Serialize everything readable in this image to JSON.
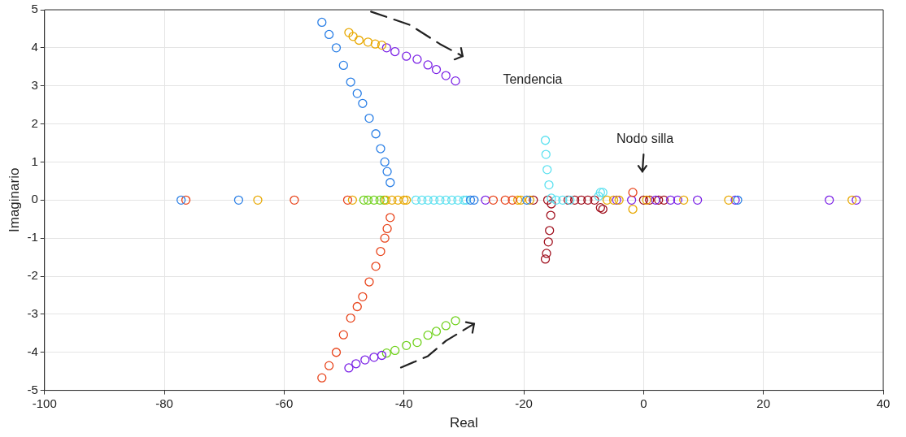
{
  "chart_data": {
    "type": "scatter",
    "xlabel": "Real",
    "ylabel": "Imaginario",
    "xlim": [
      -100,
      40
    ],
    "xticks": [
      -100,
      -80,
      -60,
      -40,
      -20,
      0,
      20,
      40
    ],
    "ylim": [
      -5,
      5
    ],
    "yticks": [
      -5,
      -4,
      -3,
      -2,
      -1,
      0,
      1,
      2,
      3,
      4,
      5
    ],
    "grid": true,
    "legend": false,
    "marker": "circle",
    "annotations": [
      "Tendencia",
      "Nodo silla"
    ],
    "series": [
      {
        "color": "#2a7fe6",
        "x": [
          -53.7,
          -52.5,
          -51.3,
          -50.1,
          -48.9,
          -47.8,
          -46.9,
          -45.8,
          -44.7,
          -43.9,
          -43.2,
          -42.8,
          -42.3,
          -77.2,
          -67.6,
          -28.9,
          -28.3,
          -19.5,
          15.7
        ],
        "values": [
          4.67,
          4.35,
          4.0,
          3.54,
          3.1,
          2.8,
          2.54,
          2.15,
          1.74,
          1.35,
          1.0,
          0.75,
          0.46,
          0,
          0,
          0,
          0,
          0,
          0
        ]
      },
      {
        "color": "#e8431a",
        "x": [
          -53.7,
          -52.5,
          -51.3,
          -50.1,
          -48.9,
          -47.8,
          -46.9,
          -45.8,
          -44.7,
          -43.9,
          -43.2,
          -42.8,
          -42.3,
          -76.4,
          -58.3,
          -49.4,
          -25.1,
          -23.1,
          -21.9,
          -1.8
        ],
        "values": [
          -4.67,
          -4.35,
          -4.0,
          -3.54,
          -3.1,
          -2.8,
          -2.54,
          -2.15,
          -1.74,
          -1.35,
          -1.0,
          -0.75,
          -0.46,
          0,
          0,
          0,
          0,
          0,
          0,
          0.2
        ]
      },
      {
        "color": "#e8a800",
        "x": [
          -49.2,
          -48.5,
          -47.5,
          -46.0,
          -44.8,
          -43.7,
          -64.4,
          -48.6,
          -43,
          -42,
          -41,
          -40,
          -39.6,
          -21,
          -20.5,
          -19,
          -6.1,
          -5,
          -4.1,
          -1.8,
          0.5,
          6.7,
          14.2,
          34.8
        ],
        "values": [
          4.4,
          4.3,
          4.2,
          4.15,
          4.1,
          4.07,
          0,
          0,
          0,
          0,
          0,
          0,
          0,
          0,
          0,
          0,
          0,
          0,
          0,
          -0.24,
          0,
          0,
          0,
          0
        ]
      },
      {
        "color": "#7b22e6",
        "x": [
          -42.9,
          -41.5,
          -39.6,
          -37.8,
          -36,
          -34.6,
          -33,
          -31.4,
          -49.2,
          -48,
          -46.5,
          -45,
          -43.7,
          -26.4,
          -4.5,
          -2,
          2,
          4.5,
          5.7,
          9.0,
          15.3,
          31.0,
          35.5
        ],
        "values": [
          4.0,
          3.9,
          3.78,
          3.7,
          3.55,
          3.43,
          3.27,
          3.13,
          -4.41,
          -4.3,
          -4.2,
          -4.13,
          -4.08,
          0,
          0,
          0,
          0,
          0,
          0,
          0,
          0,
          0,
          0
        ]
      },
      {
        "color": "#6fd11a",
        "x": [
          -42.9,
          -41.5,
          -39.6,
          -37.8,
          -36,
          -34.6,
          -33,
          -31.4,
          -46.7,
          -46,
          -45,
          -44,
          -43.3
        ],
        "values": [
          -4.02,
          -3.95,
          -3.82,
          -3.74,
          -3.55,
          -3.45,
          -3.3,
          -3.17,
          0,
          0,
          0,
          0,
          0
        ]
      },
      {
        "color": "#5ce1f0",
        "x": [
          -38,
          -37,
          -36,
          -35,
          -34,
          -33,
          -32,
          -31,
          -30,
          -29.6,
          -16.4,
          -16.3,
          -16.1,
          -15.8,
          -15.4,
          -14.6,
          -13.5,
          -12.3,
          -7.5,
          -7.2,
          -6.8
        ],
        "values": [
          0,
          0,
          0,
          0,
          0,
          0,
          0,
          0,
          0,
          0,
          1.57,
          1.2,
          0.8,
          0.4,
          0.05,
          0,
          0,
          0,
          0.1,
          0.2,
          0.2
        ]
      },
      {
        "color": "#a0101e",
        "x": [
          -15.4,
          -15.5,
          -15.7,
          -15.9,
          -16.2,
          -16.4,
          -18.4,
          -16.0,
          -12.6,
          -11.5,
          -10.4,
          -9.3,
          -8.2,
          0,
          1,
          2.5,
          3.4,
          -7.2,
          -6.8
        ],
        "values": [
          -0.1,
          -0.4,
          -0.8,
          -1.1,
          -1.4,
          -1.55,
          0,
          0,
          0,
          0,
          0,
          0,
          0,
          0,
          0,
          0,
          0,
          -0.2,
          -0.24
        ]
      }
    ]
  }
}
